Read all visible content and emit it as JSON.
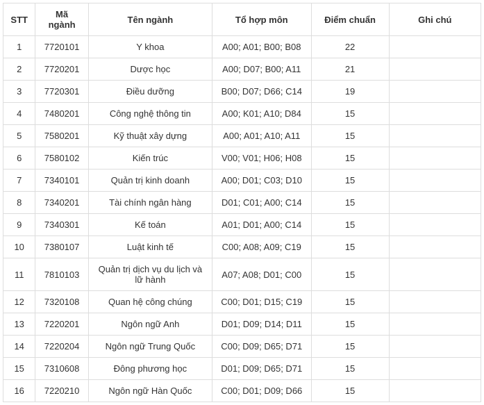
{
  "table": {
    "columns": [
      {
        "key": "stt",
        "label": "STT",
        "class": "col-stt"
      },
      {
        "key": "ma_nganh",
        "label": "Mã ngành",
        "class": "col-ma"
      },
      {
        "key": "ten_nganh",
        "label": "Tên ngành",
        "class": "col-ten"
      },
      {
        "key": "to_hop_mon",
        "label": "Tổ hợp môn",
        "class": "col-tohop"
      },
      {
        "key": "diem_chuan",
        "label": "Điểm chuẩn",
        "class": "col-diem"
      },
      {
        "key": "ghi_chu",
        "label": "Ghi chú",
        "class": "col-ghichu"
      }
    ],
    "rows": [
      {
        "stt": "1",
        "ma_nganh": "7720101",
        "ten_nganh": "Y khoa",
        "to_hop_mon": "A00; A01; B00; B08",
        "diem_chuan": "22",
        "ghi_chu": ""
      },
      {
        "stt": "2",
        "ma_nganh": "7720201",
        "ten_nganh": "Dược học",
        "to_hop_mon": "A00; D07; B00; A11",
        "diem_chuan": "21",
        "ghi_chu": ""
      },
      {
        "stt": "3",
        "ma_nganh": "7720301",
        "ten_nganh": "Điều dưỡng",
        "to_hop_mon": "B00; D07; D66; C14",
        "diem_chuan": "19",
        "ghi_chu": ""
      },
      {
        "stt": "4",
        "ma_nganh": "7480201",
        "ten_nganh": "Công nghệ thông tin",
        "to_hop_mon": "A00; K01; A10; D84",
        "diem_chuan": "15",
        "ghi_chu": ""
      },
      {
        "stt": "5",
        "ma_nganh": "7580201",
        "ten_nganh": "Kỹ thuật xây dựng",
        "to_hop_mon": "A00; A01; A10; A11",
        "diem_chuan": "15",
        "ghi_chu": ""
      },
      {
        "stt": "6",
        "ma_nganh": "7580102",
        "ten_nganh": "Kiến trúc",
        "to_hop_mon": "V00; V01; H06; H08",
        "diem_chuan": "15",
        "ghi_chu": ""
      },
      {
        "stt": "7",
        "ma_nganh": "7340101",
        "ten_nganh": "Quản trị kinh doanh",
        "to_hop_mon": "A00; D01; C03; D10",
        "diem_chuan": "15",
        "ghi_chu": ""
      },
      {
        "stt": "8",
        "ma_nganh": "7340201",
        "ten_nganh": "Tài chính ngân hàng",
        "to_hop_mon": "D01; C01; A00; C14",
        "diem_chuan": "15",
        "ghi_chu": ""
      },
      {
        "stt": "9",
        "ma_nganh": "7340301",
        "ten_nganh": "Kế toán",
        "to_hop_mon": "A01; D01; A00; C14",
        "diem_chuan": "15",
        "ghi_chu": ""
      },
      {
        "stt": "10",
        "ma_nganh": "7380107",
        "ten_nganh": "Luật kinh tế",
        "to_hop_mon": "C00; A08; A09; C19",
        "diem_chuan": "15",
        "ghi_chu": ""
      },
      {
        "stt": "11",
        "ma_nganh": "7810103",
        "ten_nganh": "Quản trị dịch vụ du lịch và lữ hành",
        "to_hop_mon": "A07; A08; D01; C00",
        "diem_chuan": "15",
        "ghi_chu": ""
      },
      {
        "stt": "12",
        "ma_nganh": "7320108",
        "ten_nganh": "Quan hệ công chúng",
        "to_hop_mon": "C00; D01; D15; C19",
        "diem_chuan": "15",
        "ghi_chu": ""
      },
      {
        "stt": "13",
        "ma_nganh": "7220201",
        "ten_nganh": "Ngôn ngữ Anh",
        "to_hop_mon": "D01; D09; D14; D11",
        "diem_chuan": "15",
        "ghi_chu": ""
      },
      {
        "stt": "14",
        "ma_nganh": "7220204",
        "ten_nganh": "Ngôn ngữ Trung Quốc",
        "to_hop_mon": "C00; D09; D65; D71",
        "diem_chuan": "15",
        "ghi_chu": ""
      },
      {
        "stt": "15",
        "ma_nganh": "7310608",
        "ten_nganh": "Đông phương học",
        "to_hop_mon": "D01; D09; D65; D71",
        "diem_chuan": "15",
        "ghi_chu": ""
      },
      {
        "stt": "16",
        "ma_nganh": "7220210",
        "ten_nganh": "Ngôn ngữ Hàn Quốc",
        "to_hop_mon": "C00; D01; D09; D66",
        "diem_chuan": "15",
        "ghi_chu": ""
      }
    ],
    "styling": {
      "border_color": "#dddddd",
      "text_color": "#333333",
      "background_color": "#ffffff",
      "font_size": 13,
      "cell_padding": "8px 10px",
      "text_align": "center"
    }
  }
}
